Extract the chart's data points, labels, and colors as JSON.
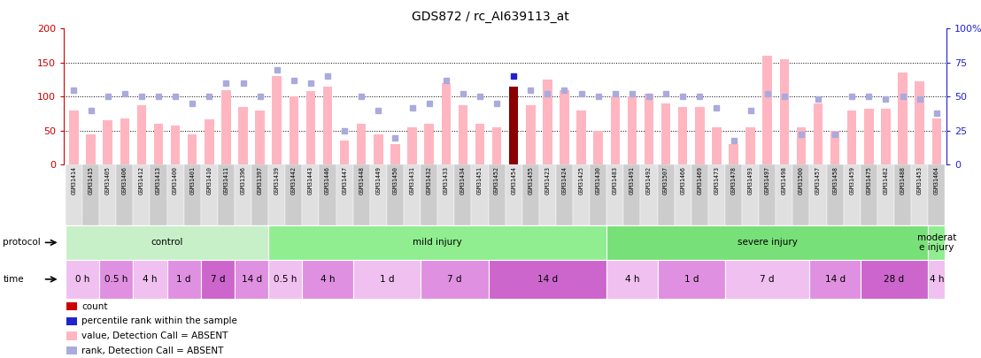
{
  "title": "GDS872 / rc_AI639113_at",
  "samples": [
    "GSM31414",
    "GSM31415",
    "GSM31405",
    "GSM31406",
    "GSM31412",
    "GSM31413",
    "GSM31400",
    "GSM31401",
    "GSM31410",
    "GSM31411",
    "GSM31396",
    "GSM31397",
    "GSM31439",
    "GSM31442",
    "GSM31443",
    "GSM31446",
    "GSM31447",
    "GSM31448",
    "GSM31449",
    "GSM31450",
    "GSM31431",
    "GSM31432",
    "GSM31433",
    "GSM31434",
    "GSM31451",
    "GSM31452",
    "GSM31454",
    "GSM31455",
    "GSM31423",
    "GSM31424",
    "GSM31425",
    "GSM31430",
    "GSM31483",
    "GSM31491",
    "GSM31492",
    "GSM31507",
    "GSM31466",
    "GSM31469",
    "GSM31473",
    "GSM31478",
    "GSM31493",
    "GSM31497",
    "GSM31498",
    "GSM31500",
    "GSM31457",
    "GSM31458",
    "GSM31459",
    "GSM31475",
    "GSM31482",
    "GSM31488",
    "GSM31453",
    "GSM31464"
  ],
  "bar_values": [
    80,
    45,
    65,
    68,
    88,
    60,
    58,
    45,
    67,
    110,
    85,
    80,
    130,
    100,
    108,
    115,
    35,
    60,
    45,
    30,
    55,
    60,
    120,
    88,
    60,
    55,
    115,
    88,
    125,
    110,
    80,
    50,
    100,
    100,
    105,
    90,
    85,
    85,
    55,
    30,
    55,
    160,
    155,
    55,
    90,
    50,
    80,
    82,
    82,
    135,
    122,
    68
  ],
  "rank_values": [
    55,
    40,
    50,
    52,
    50,
    50,
    50,
    45,
    50,
    60,
    60,
    50,
    70,
    62,
    60,
    65,
    25,
    50,
    40,
    20,
    42,
    45,
    62,
    52,
    50,
    45,
    65,
    55,
    52,
    55,
    52,
    50,
    52,
    52,
    50,
    52,
    50,
    50,
    42,
    18,
    40,
    52,
    50,
    22,
    48,
    22,
    50,
    50,
    48,
    50,
    48,
    38
  ],
  "count_bar": 26,
  "ylim_left": [
    0,
    200
  ],
  "ylim_right": [
    0,
    100
  ],
  "yticks_left": [
    0,
    50,
    100,
    150,
    200
  ],
  "yticks_right": [
    0,
    25,
    50,
    75,
    100
  ],
  "ytick_labels_left": [
    "0",
    "50",
    "100",
    "150",
    "200"
  ],
  "ytick_labels_right": [
    "0",
    "25",
    "50",
    "75",
    "100%"
  ],
  "protocol_groups": [
    {
      "label": "control",
      "start": 0,
      "end": 12,
      "color": "#c8f0c8"
    },
    {
      "label": "mild injury",
      "start": 12,
      "end": 32,
      "color": "#90ee90"
    },
    {
      "label": "severe injury",
      "start": 32,
      "end": 51,
      "color": "#78e078"
    },
    {
      "label": "moderat\ne injury",
      "start": 51,
      "end": 52,
      "color": "#90ee90"
    }
  ],
  "time_groups": [
    {
      "label": "0 h",
      "start": 0,
      "end": 2,
      "color": "#f0c0f0"
    },
    {
      "label": "0.5 h",
      "start": 2,
      "end": 4,
      "color": "#e090e0"
    },
    {
      "label": "4 h",
      "start": 4,
      "end": 6,
      "color": "#f0c0f0"
    },
    {
      "label": "1 d",
      "start": 6,
      "end": 8,
      "color": "#e090e0"
    },
    {
      "label": "7 d",
      "start": 8,
      "end": 10,
      "color": "#cc66cc"
    },
    {
      "label": "14 d",
      "start": 10,
      "end": 12,
      "color": "#e090e0"
    },
    {
      "label": "0.5 h",
      "start": 12,
      "end": 14,
      "color": "#f0c0f0"
    },
    {
      "label": "4 h",
      "start": 14,
      "end": 17,
      "color": "#e090e0"
    },
    {
      "label": "1 d",
      "start": 17,
      "end": 21,
      "color": "#f0c0f0"
    },
    {
      "label": "7 d",
      "start": 21,
      "end": 25,
      "color": "#e090e0"
    },
    {
      "label": "14 d",
      "start": 25,
      "end": 32,
      "color": "#cc66cc"
    },
    {
      "label": "4 h",
      "start": 32,
      "end": 35,
      "color": "#f0c0f0"
    },
    {
      "label": "1 d",
      "start": 35,
      "end": 39,
      "color": "#e090e0"
    },
    {
      "label": "7 d",
      "start": 39,
      "end": 44,
      "color": "#f0c0f0"
    },
    {
      "label": "14 d",
      "start": 44,
      "end": 47,
      "color": "#e090e0"
    },
    {
      "label": "28 d",
      "start": 47,
      "end": 51,
      "color": "#cc66cc"
    },
    {
      "label": "4 h",
      "start": 51,
      "end": 52,
      "color": "#f0c0f0"
    }
  ],
  "bar_color_normal": "#ffb6c1",
  "bar_color_special": "#8b0000",
  "rank_color_normal": "#aaaadd",
  "rank_color_special": "#2222cc",
  "left_axis_color": "#cc0000",
  "right_axis_color": "#2222cc",
  "background_color": "#ffffff",
  "legend_items": [
    {
      "color": "#cc0000",
      "label": "count"
    },
    {
      "color": "#2222cc",
      "label": "percentile rank within the sample"
    },
    {
      "color": "#ffb6c1",
      "label": "value, Detection Call = ABSENT"
    },
    {
      "color": "#aaaadd",
      "label": "rank, Detection Call = ABSENT"
    }
  ]
}
